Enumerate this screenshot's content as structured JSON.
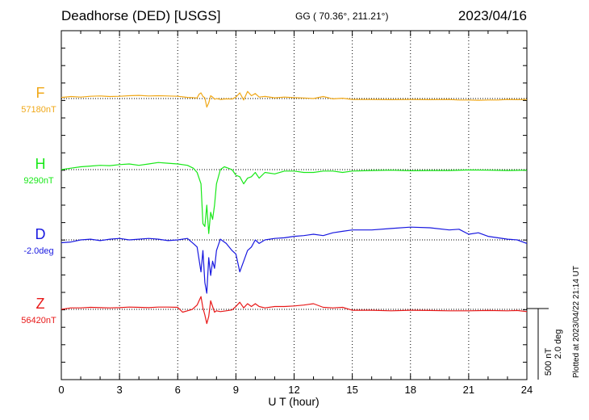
{
  "header": {
    "station": "Deadhorse (DED)  [USGS]",
    "coords": "GG ( 70.36°, 211.21°)",
    "date": "2023/04/16"
  },
  "plotted_note": "Plotted at 2023/04/22 21:14 UT",
  "chart_data": {
    "type": "line",
    "xlabel": "U T (hour)",
    "xlim": [
      0,
      24
    ],
    "x_ticks": [
      "0",
      "3",
      "6",
      "9",
      "12",
      "15",
      "18",
      "21",
      "24"
    ],
    "scale_bar": [
      "500 nT",
      "2.0 deg"
    ],
    "colors": {
      "F": "#f0a818",
      "H": "#18e818",
      "D": "#1818e0",
      "Z": "#e81818"
    },
    "series": [
      {
        "name": "F",
        "baseline_label": "57180nT",
        "units": "nT",
        "x": [
          0,
          0.5,
          1,
          1.5,
          2,
          2.5,
          3,
          3.5,
          4,
          4.5,
          5,
          5.5,
          6,
          6.25,
          6.5,
          6.75,
          7,
          7.1,
          7.2,
          7.3,
          7.4,
          7.5,
          7.6,
          7.7,
          7.8,
          7.9,
          8,
          8.2,
          8.5,
          8.8,
          9,
          9.2,
          9.4,
          9.6,
          9.8,
          10,
          10.2,
          10.5,
          11,
          11.5,
          12,
          12.5,
          13,
          13.5,
          14,
          14.5,
          15,
          16,
          17,
          18,
          19,
          20,
          20.5,
          21,
          21.5,
          22,
          22.5,
          23,
          23.5,
          24
        ],
        "y": [
          8,
          14,
          10,
          16,
          18,
          14,
          16,
          20,
          22,
          18,
          20,
          18,
          16,
          12,
          8,
          6,
          4,
          30,
          40,
          15,
          5,
          -60,
          -30,
          20,
          10,
          -5,
          0,
          -6,
          -2,
          -4,
          10,
          40,
          -10,
          50,
          20,
          35,
          10,
          15,
          5,
          10,
          6,
          4,
          0,
          14,
          -2,
          2,
          -6,
          -6,
          -8,
          -6,
          -8,
          -6,
          -10,
          -10,
          -12,
          -10,
          -10,
          -6,
          -8,
          -6
        ]
      },
      {
        "name": "H",
        "baseline_label": "9290nT",
        "units": "nT",
        "x": [
          0,
          0.5,
          1,
          1.5,
          2,
          2.5,
          3,
          3.5,
          4,
          4.5,
          5,
          5.5,
          6,
          6.5,
          6.8,
          7,
          7.2,
          7.3,
          7.4,
          7.5,
          7.6,
          7.7,
          7.8,
          7.9,
          8,
          8.2,
          8.4,
          8.6,
          8.8,
          9,
          9.2,
          9.4,
          9.6,
          9.8,
          10,
          10.2,
          10.5,
          11,
          11.5,
          12,
          12.5,
          13,
          13.5,
          14,
          14.5,
          15,
          16,
          17,
          18,
          19,
          20,
          21,
          22,
          23,
          24
        ],
        "y": [
          0,
          10,
          20,
          25,
          30,
          28,
          35,
          40,
          30,
          40,
          50,
          45,
          40,
          30,
          10,
          -20,
          -100,
          -380,
          -400,
          -250,
          -450,
          -300,
          -350,
          -250,
          -100,
          0,
          20,
          10,
          0,
          -40,
          -50,
          -100,
          -60,
          -50,
          -20,
          -60,
          -20,
          -30,
          -10,
          -10,
          -20,
          -20,
          -10,
          -10,
          -20,
          -10,
          -6,
          -4,
          -8,
          -6,
          -6,
          -2,
          -4,
          -6,
          -4
        ]
      },
      {
        "name": "D",
        "baseline_label": "-2.0deg",
        "units": "deg",
        "x": [
          0,
          0.5,
          1,
          1.5,
          2,
          2.5,
          3,
          3.5,
          4,
          4.5,
          5,
          5.5,
          6,
          6.5,
          6.8,
          7,
          7.2,
          7.3,
          7.4,
          7.5,
          7.6,
          7.7,
          7.8,
          7.9,
          8,
          8.2,
          8.5,
          8.8,
          9,
          9.2,
          9.4,
          9.6,
          9.8,
          10,
          10.2,
          10.5,
          11,
          11.5,
          12,
          12.5,
          13,
          13.5,
          14,
          14.5,
          15,
          16,
          17,
          18,
          19,
          20,
          20.5,
          21,
          21.5,
          22,
          22.5,
          23,
          23.5,
          24
        ],
        "y": [
          -0.08,
          -0.06,
          0,
          0.02,
          -0.02,
          0.02,
          0.04,
          0,
          0.02,
          0.04,
          0.02,
          -0.02,
          0,
          0.04,
          -0.1,
          -0.2,
          -0.9,
          -0.3,
          -1.2,
          -1.5,
          -0.5,
          -1.0,
          -0.6,
          -0.8,
          -0.3,
          0.02,
          -0.1,
          -0.3,
          -0.4,
          -0.9,
          -0.6,
          -0.3,
          -0.2,
          0,
          -0.1,
          0,
          0.04,
          0.06,
          0.1,
          0.12,
          0.16,
          0.12,
          0.2,
          0.24,
          0.28,
          0.28,
          0.32,
          0.36,
          0.34,
          0.28,
          0.3,
          0.16,
          0.2,
          0.1,
          0.06,
          0.02,
          0,
          -0.1
        ]
      },
      {
        "name": "Z",
        "baseline_label": "56420nT",
        "units": "nT",
        "x": [
          0,
          0.5,
          1,
          1.5,
          2,
          2.5,
          3,
          3.5,
          4,
          4.5,
          5,
          5.5,
          6,
          6.25,
          6.5,
          6.75,
          7,
          7.1,
          7.2,
          7.3,
          7.4,
          7.5,
          7.6,
          7.7,
          7.8,
          7.9,
          8,
          8.2,
          8.5,
          8.8,
          9,
          9.2,
          9.4,
          9.6,
          9.8,
          10,
          10.2,
          10.5,
          11,
          11.5,
          12,
          12.5,
          13,
          13.5,
          14,
          14.5,
          15,
          16,
          17,
          18,
          19,
          20,
          21,
          22,
          23,
          23.5,
          24
        ],
        "y": [
          0,
          10,
          10,
          14,
          12,
          10,
          12,
          16,
          14,
          12,
          16,
          16,
          14,
          -20,
          -10,
          0,
          30,
          60,
          90,
          10,
          -40,
          -100,
          -50,
          60,
          20,
          -20,
          -10,
          -16,
          -10,
          -4,
          20,
          50,
          10,
          40,
          20,
          40,
          20,
          10,
          20,
          20,
          24,
          30,
          40,
          14,
          10,
          14,
          -6,
          -6,
          -10,
          -6,
          -8,
          -10,
          -10,
          -8,
          -10,
          -8,
          -16
        ]
      }
    ]
  }
}
